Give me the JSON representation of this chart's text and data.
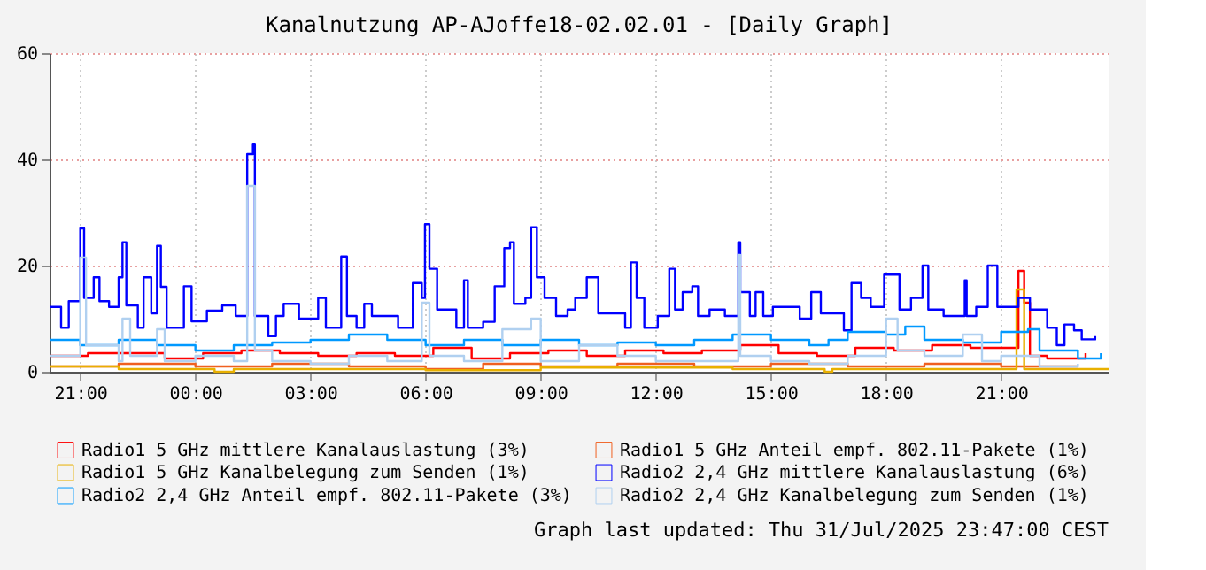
{
  "chart_data": {
    "type": "step",
    "title": "Kanalnutzung AP-AJoffe18-02.02.01 - [Daily Graph]",
    "xlim": [
      "2025-07-30T20:12",
      "2025-07-31T23:48"
    ],
    "ylim": [
      0,
      60
    ],
    "yticks": [
      0,
      20,
      40,
      60
    ],
    "xticks": [
      {
        "value": "2025-07-30T21:00",
        "label": "21:00"
      },
      {
        "value": "2025-07-31T00:00",
        "label": "00:00"
      },
      {
        "value": "2025-07-31T03:00",
        "label": "03:00"
      },
      {
        "value": "2025-07-31T06:00",
        "label": "06:00"
      },
      {
        "value": "2025-07-31T09:00",
        "label": "09:00"
      },
      {
        "value": "2025-07-31T12:00",
        "label": "12:00"
      },
      {
        "value": "2025-07-31T15:00",
        "label": "15:00"
      },
      {
        "value": "2025-07-31T18:00",
        "label": "18:00"
      },
      {
        "value": "2025-07-31T21:00",
        "label": "21:00"
      }
    ],
    "grid": true,
    "legend": "bottom",
    "annotations": [
      "Graph last updated: Thu 31/Jul/2025 23:47:00 CEST"
    ],
    "series": [
      {
        "name": "Radio1 5 GHz mittlere Kanalauslastung (3%)",
        "color": "#ff0000",
        "x": [
          "2025-07-30T20:12",
          "2025-07-30T21:12",
          "2025-07-30T22:12",
          "2025-07-30T23:12",
          "2025-07-31T00:12",
          "2025-07-31T01:12",
          "2025-07-31T02:12",
          "2025-07-31T03:12",
          "2025-07-31T04:12",
          "2025-07-31T05:12",
          "2025-07-31T06:12",
          "2025-07-31T07:12",
          "2025-07-31T08:12",
          "2025-07-31T09:12",
          "2025-07-31T10:12",
          "2025-07-31T11:12",
          "2025-07-31T12:12",
          "2025-07-31T13:12",
          "2025-07-31T14:12",
          "2025-07-31T15:12",
          "2025-07-31T16:12",
          "2025-07-31T17:12",
          "2025-07-31T18:12",
          "2025-07-31T19:12",
          "2025-07-31T20:12",
          "2025-07-31T21:27",
          "2025-07-31T21:36",
          "2025-07-31T21:45",
          "2025-07-31T22:12",
          "2025-07-31T23:12"
        ],
        "values": [
          3,
          3.5,
          3.5,
          2.5,
          3.5,
          4,
          3.5,
          3,
          3.5,
          3,
          4.5,
          2.5,
          3.5,
          4,
          3,
          4,
          3.5,
          4,
          5,
          3.5,
          3,
          4.5,
          4,
          5,
          4.5,
          19,
          13,
          3,
          2.5,
          3.5
        ]
      },
      {
        "name": "Radio1 5 GHz Anteil empf. 802.11-Pakete (1%)",
        "color": "#f06020",
        "x": [
          "2025-07-30T20:12",
          "2025-07-30T22:00",
          "2025-07-31T00:00",
          "2025-07-31T02:00",
          "2025-07-31T04:00",
          "2025-07-31T06:00",
          "2025-07-31T07:30",
          "2025-07-31T09:00",
          "2025-07-31T11:00",
          "2025-07-31T13:00",
          "2025-07-31T15:00",
          "2025-07-31T17:00",
          "2025-07-31T19:00",
          "2025-07-31T21:00",
          "2025-07-31T23:00"
        ],
        "values": [
          1,
          1.5,
          1,
          1.5,
          1,
          0.5,
          1.5,
          1,
          1.5,
          1,
          1.5,
          1,
          1.5,
          1,
          1
        ]
      },
      {
        "name": "Radio1 5 GHz Kanalbelegung zum Senden  (1%)",
        "color": "#e8b000",
        "x": [
          "2025-07-30T20:12",
          "2025-07-30T22:00",
          "2025-07-31T00:00",
          "2025-07-31T00:30",
          "2025-07-31T01:00",
          "2025-07-31T06:00",
          "2025-07-31T09:00",
          "2025-07-31T14:00",
          "2025-07-31T16:24",
          "2025-07-31T16:36",
          "2025-07-31T21:24",
          "2025-07-31T21:36",
          "2025-07-31T23:48"
        ],
        "values": [
          1,
          0.5,
          0.5,
          0,
          0.5,
          0.3,
          0.8,
          0.5,
          0,
          0.5,
          15.5,
          0.5,
          0.5
        ]
      },
      {
        "name": "Radio2 2,4 GHz mittlere Kanalauslastung (6%)",
        "color": "#0000ff",
        "x": [
          "2025-07-30T20:12",
          "2025-07-30T20:30",
          "2025-07-30T20:42",
          "2025-07-30T21:00",
          "2025-07-30T21:06",
          "2025-07-30T21:21",
          "2025-07-30T21:30",
          "2025-07-30T21:45",
          "2025-07-30T22:00",
          "2025-07-30T22:06",
          "2025-07-30T22:12",
          "2025-07-30T22:30",
          "2025-07-30T22:39",
          "2025-07-30T22:51",
          "2025-07-30T23:00",
          "2025-07-30T23:06",
          "2025-07-30T23:15",
          "2025-07-30T23:42",
          "2025-07-30T23:54",
          "2025-07-31T00:18",
          "2025-07-31T00:42",
          "2025-07-31T01:03",
          "2025-07-31T01:21",
          "2025-07-31T01:30",
          "2025-07-31T01:33",
          "2025-07-31T01:54",
          "2025-07-31T02:06",
          "2025-07-31T02:18",
          "2025-07-31T02:42",
          "2025-07-31T03:12",
          "2025-07-31T03:24",
          "2025-07-31T03:48",
          "2025-07-31T03:57",
          "2025-07-31T04:12",
          "2025-07-31T04:24",
          "2025-07-31T04:36",
          "2025-07-31T05:17",
          "2025-07-31T05:40",
          "2025-07-31T05:54",
          "2025-07-31T05:59",
          "2025-07-31T06:06",
          "2025-07-31T06:18",
          "2025-07-31T06:48",
          "2025-07-31T07:00",
          "2025-07-31T07:06",
          "2025-07-31T07:30",
          "2025-07-31T07:48",
          "2025-07-31T08:03",
          "2025-07-31T08:12",
          "2025-07-31T08:18",
          "2025-07-31T08:36",
          "2025-07-31T08:45",
          "2025-07-31T08:54",
          "2025-07-31T09:06",
          "2025-07-31T09:24",
          "2025-07-31T09:42",
          "2025-07-31T09:54",
          "2025-07-31T10:12",
          "2025-07-31T10:30",
          "2025-07-31T11:12",
          "2025-07-31T11:21",
          "2025-07-31T11:30",
          "2025-07-31T11:42",
          "2025-07-31T12:03",
          "2025-07-31T12:21",
          "2025-07-31T12:30",
          "2025-07-31T12:42",
          "2025-07-31T12:57",
          "2025-07-31T13:06",
          "2025-07-31T13:24",
          "2025-07-31T13:48",
          "2025-07-31T14:09",
          "2025-07-31T14:12",
          "2025-07-31T14:27",
          "2025-07-31T14:36",
          "2025-07-31T14:48",
          "2025-07-31T15:03",
          "2025-07-31T15:45",
          "2025-07-31T16:03",
          "2025-07-31T16:18",
          "2025-07-31T16:54",
          "2025-07-31T17:06",
          "2025-07-31T17:21",
          "2025-07-31T17:36",
          "2025-07-31T17:57",
          "2025-07-31T18:21",
          "2025-07-31T18:39",
          "2025-07-31T18:57",
          "2025-07-31T19:06",
          "2025-07-31T19:30",
          "2025-07-31T20:03",
          "2025-07-31T20:06",
          "2025-07-31T20:21",
          "2025-07-31T20:39",
          "2025-07-31T20:54",
          "2025-07-31T21:27",
          "2025-07-31T21:45",
          "2025-07-31T22:12",
          "2025-07-31T22:27",
          "2025-07-31T22:39",
          "2025-07-31T22:54",
          "2025-07-31T23:06",
          "2025-07-31T23:27"
        ],
        "values": [
          12.2,
          8.3,
          13.3,
          27,
          13.9,
          17.8,
          13.3,
          12.2,
          17.8,
          24.4,
          12.5,
          8.3,
          17.8,
          11,
          23.7,
          16,
          8.3,
          16.1,
          9.5,
          11.5,
          12.5,
          10.5,
          41,
          42.8,
          10.5,
          6.7,
          10.5,
          12.8,
          10,
          13.9,
          8.3,
          21.7,
          10.5,
          8.3,
          12.8,
          10.5,
          8.3,
          16.7,
          13.9,
          27.8,
          19.4,
          11.7,
          8.3,
          17.2,
          8.3,
          9.4,
          16.1,
          23.3,
          24.4,
          12.8,
          13.9,
          27.2,
          17.8,
          13.9,
          10.5,
          11.7,
          13.9,
          17.8,
          11,
          8.3,
          20.6,
          13.9,
          8.3,
          10.5,
          19.4,
          11.7,
          15,
          16.1,
          10.5,
          11.7,
          10.5,
          24.4,
          15,
          10.5,
          15,
          10.5,
          12.2,
          10,
          15,
          11,
          7.8,
          16.7,
          13.9,
          12.2,
          18.3,
          11.7,
          13.9,
          20,
          11.7,
          10.5,
          17.2,
          10.5,
          12.2,
          20,
          12.2,
          13.9,
          11.7,
          8.3,
          5,
          8.9,
          7.8,
          6.1,
          6.7
        ]
      },
      {
        "name": "Radio2 2,4 GHz Anteil empf. 802.11-Pakete (3%)",
        "color": "#0099ff",
        "x": [
          "2025-07-30T20:12",
          "2025-07-30T21:00",
          "2025-07-30T22:00",
          "2025-07-30T23:00",
          "2025-07-31T00:00",
          "2025-07-31T01:00",
          "2025-07-31T02:00",
          "2025-07-31T03:00",
          "2025-07-31T04:00",
          "2025-07-31T05:00",
          "2025-07-31T06:00",
          "2025-07-31T07:00",
          "2025-07-31T08:00",
          "2025-07-31T09:00",
          "2025-07-31T10:00",
          "2025-07-31T11:00",
          "2025-07-31T12:00",
          "2025-07-31T13:00",
          "2025-07-31T14:00",
          "2025-07-31T15:00",
          "2025-07-31T16:00",
          "2025-07-31T16:30",
          "2025-07-31T17:00",
          "2025-07-31T18:00",
          "2025-07-31T18:30",
          "2025-07-31T19:00",
          "2025-07-31T20:00",
          "2025-07-31T21:00",
          "2025-07-31T21:42",
          "2025-07-31T22:00",
          "2025-07-31T23:00",
          "2025-07-31T23:36"
        ],
        "values": [
          6,
          5,
          6,
          5,
          4,
          5,
          5.5,
          6,
          7,
          6,
          5,
          6,
          5,
          6,
          5,
          5.5,
          5,
          6,
          7,
          6,
          5,
          6,
          7.5,
          7,
          8.5,
          6,
          5.5,
          7.5,
          8,
          4,
          2.5,
          3.5
        ]
      },
      {
        "name": "Radio2 2,4 GHz Kanalbelegung zum Senden  (1%)",
        "color": "#b0d0f0",
        "x": [
          "2025-07-30T20:12",
          "2025-07-30T20:54",
          "2025-07-30T21:00",
          "2025-07-30T21:09",
          "2025-07-30T22:00",
          "2025-07-30T22:06",
          "2025-07-30T22:18",
          "2025-07-30T23:00",
          "2025-07-30T23:12",
          "2025-07-31T00:00",
          "2025-07-31T01:00",
          "2025-07-31T01:21",
          "2025-07-31T01:33",
          "2025-07-31T02:00",
          "2025-07-31T03:00",
          "2025-07-31T04:00",
          "2025-07-31T05:00",
          "2025-07-31T05:54",
          "2025-07-31T06:06",
          "2025-07-31T07:00",
          "2025-07-31T08:00",
          "2025-07-31T08:45",
          "2025-07-31T09:00",
          "2025-07-31T10:00",
          "2025-07-31T11:00",
          "2025-07-31T12:00",
          "2025-07-31T14:09",
          "2025-07-31T14:12",
          "2025-07-31T15:00",
          "2025-07-31T16:00",
          "2025-07-31T17:00",
          "2025-07-31T18:00",
          "2025-07-31T18:18",
          "2025-07-31T19:00",
          "2025-07-31T20:00",
          "2025-07-31T20:30",
          "2025-07-31T21:00",
          "2025-07-31T22:00",
          "2025-07-31T23:00"
        ],
        "values": [
          3,
          3,
          21.5,
          5,
          2,
          10,
          3,
          8,
          2,
          3,
          2,
          35,
          4,
          2,
          1.5,
          3,
          2,
          13,
          3,
          2,
          8,
          10,
          2,
          5,
          3,
          2,
          22,
          3,
          2,
          1.5,
          3,
          10,
          4,
          3,
          7,
          2,
          3,
          1,
          1.5
        ]
      }
    ]
  }
}
